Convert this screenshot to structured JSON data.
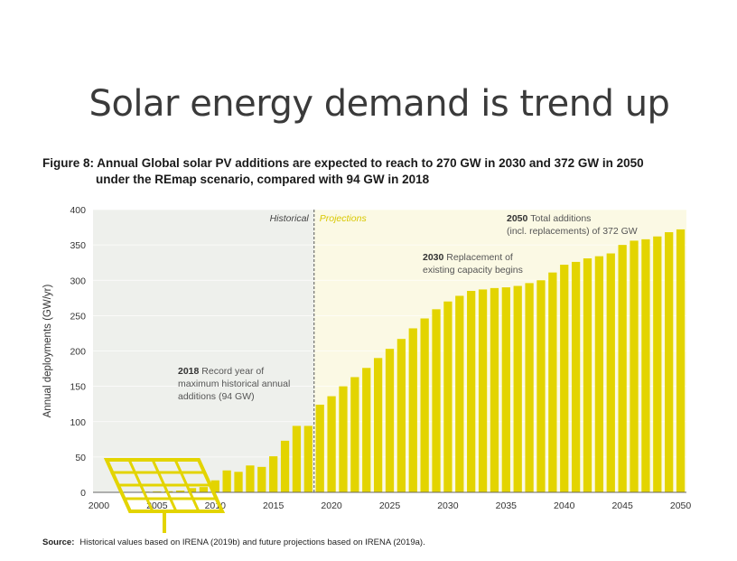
{
  "slide": {
    "title": "Solar energy demand is trend up",
    "figure_caption_line1": "Figure 8: Annual Global solar PV additions are expected to reach to 270 GW in 2030 and 372 GW in 2050",
    "figure_caption_line2": "under the REmap scenario, compared with 94 GW in 2018",
    "source_label": "Source:",
    "source_text": "Historical values based on IRENA (2019b) and future projections based on IRENA (2019a)."
  },
  "colors": {
    "bar": "#e3d400",
    "historical_bg": "#eef0ec",
    "projection_bg": "#fbf9e4",
    "projection_label": "#d9c800",
    "divider": "#555555",
    "icon": "#e3d400"
  },
  "chart_data": {
    "type": "bar",
    "title": "",
    "xlabel": "",
    "ylabel": "Annual deployments (GW/yr)",
    "ylim": [
      0,
      400
    ],
    "yticks": [
      0,
      50,
      100,
      150,
      200,
      250,
      300,
      350,
      400
    ],
    "xticks": [
      2000,
      2005,
      2010,
      2015,
      2020,
      2025,
      2030,
      2035,
      2040,
      2045,
      2050
    ],
    "regions": [
      {
        "label": "Historical",
        "from": 2000,
        "to": 2018
      },
      {
        "label": "Projections",
        "from": 2019,
        "to": 2050
      }
    ],
    "annotations": [
      {
        "year_label": "2018",
        "text_line1": "Record year of",
        "text_line2": "maximum historical annual",
        "text_line3": "additions (94 GW)"
      },
      {
        "year_label": "2030",
        "text_line1": "Replacement of",
        "text_line2": "existing capacity begins"
      },
      {
        "year_label": "2050",
        "text_line1": "Total additions",
        "text_line2": "(incl. replacements) of 372 GW"
      }
    ],
    "years": [
      2000,
      2001,
      2002,
      2003,
      2004,
      2005,
      2006,
      2007,
      2008,
      2009,
      2010,
      2011,
      2012,
      2013,
      2014,
      2015,
      2016,
      2017,
      2018,
      2019,
      2020,
      2021,
      2022,
      2023,
      2024,
      2025,
      2026,
      2027,
      2028,
      2029,
      2030,
      2031,
      2032,
      2033,
      2034,
      2035,
      2036,
      2037,
      2038,
      2039,
      2040,
      2041,
      2042,
      2043,
      2044,
      2045,
      2046,
      2047,
      2048,
      2049,
      2050
    ],
    "values": [
      0.3,
      0.3,
      0.5,
      0.6,
      1,
      1.4,
      1.6,
      2.5,
      6,
      7.5,
      17,
      31,
      29,
      38,
      36,
      51,
      73,
      94,
      94,
      124,
      136,
      150,
      163,
      176,
      190,
      203,
      217,
      232,
      246,
      259,
      270,
      278,
      285,
      287,
      289,
      290,
      292,
      296,
      300,
      311,
      322,
      326,
      331,
      334,
      338,
      350,
      356,
      358,
      362,
      368,
      372
    ]
  }
}
